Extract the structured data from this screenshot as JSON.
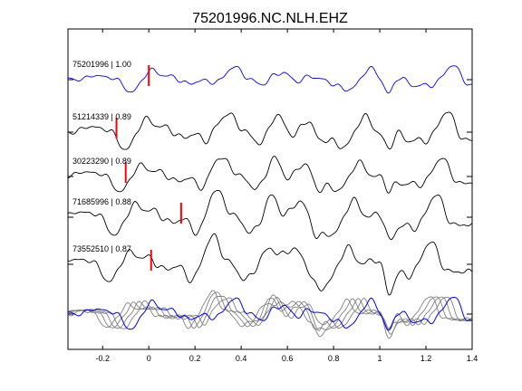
{
  "chart_data": {
    "type": "line",
    "title": "75201996.NC.NLH.EHZ",
    "xlim": [
      -0.35,
      1.4
    ],
    "xticks": [
      "-0.2",
      "0",
      "0.2",
      "0.4",
      "0.6",
      "0.8",
      "1",
      "1.2",
      "1.4"
    ],
    "xtick_values": [
      -0.2,
      0,
      0.2,
      0.4,
      0.6,
      0.8,
      1.0,
      1.2,
      1.4
    ],
    "grid": false,
    "colors": {
      "reference": "#0000ff",
      "trace": "#000000",
      "overlay": "#808080",
      "pick": "#ff0000"
    },
    "traces": [
      {
        "label": "75201996 | 1.00",
        "pick_time": 0.0
      },
      {
        "label": "51214339 | 0.89",
        "pick_time": -0.14
      },
      {
        "label": "30223290 | 0.89",
        "pick_time": -0.1
      },
      {
        "label": "71685996 | 0.88",
        "pick_time": 0.14
      },
      {
        "label": "73552510 | 0.87",
        "pick_time": 0.01
      }
    ]
  }
}
